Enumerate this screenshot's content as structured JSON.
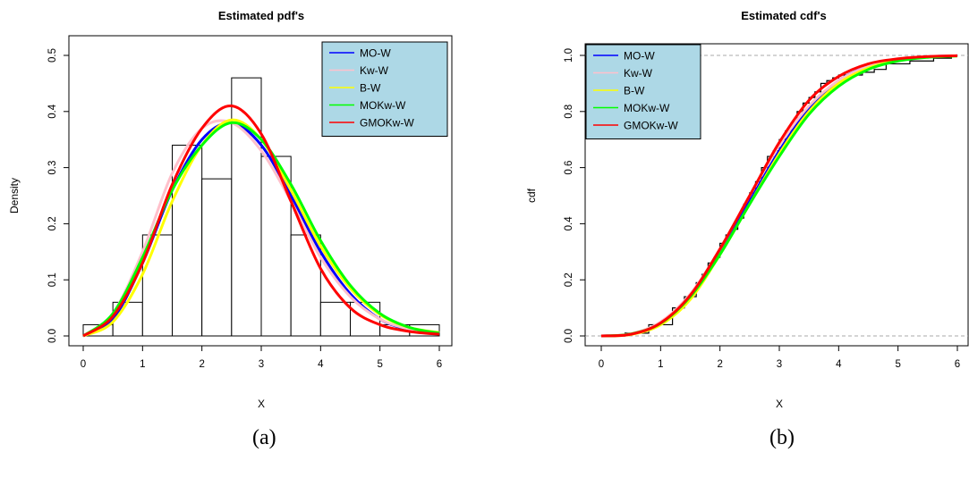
{
  "figure": {
    "panel_a_label": "(a)",
    "panel_b_label": "(b)"
  },
  "chart_data": [
    {
      "type": "bar",
      "panel": "(a)",
      "title": "Estimated pdf's",
      "xlabel": "X",
      "ylabel": "Density",
      "xlim": [
        0,
        6
      ],
      "ylim": [
        0,
        0.5
      ],
      "xticks": [
        0,
        1,
        2,
        3,
        4,
        5,
        6
      ],
      "yticks": [
        0.0,
        0.1,
        0.2,
        0.3,
        0.4,
        0.5
      ],
      "ytick_labels": [
        "0.0",
        "0.1",
        "0.2",
        "0.3",
        "0.4",
        "0.5"
      ],
      "grid": false,
      "legend_position": "top-right",
      "histogram": {
        "bin_edges": [
          0,
          0.5,
          1,
          1.5,
          2,
          2.5,
          3,
          3.5,
          4,
          4.5,
          5,
          5.5,
          6
        ],
        "density": [
          0.02,
          0.06,
          0.18,
          0.34,
          0.28,
          0.46,
          0.32,
          0.18,
          0.06,
          0.06,
          0.02,
          0.02
        ],
        "fill": "#ffffff",
        "edge": "#000000"
      },
      "series": [
        {
          "name": "MO-W",
          "color": "#0000ff",
          "x": [
            0,
            0.5,
            1,
            1.5,
            2,
            2.5,
            3,
            3.5,
            4,
            4.5,
            5,
            5.5,
            6
          ],
          "y": [
            0.0,
            0.03,
            0.13,
            0.26,
            0.35,
            0.38,
            0.34,
            0.25,
            0.15,
            0.075,
            0.03,
            0.011,
            0.004
          ]
        },
        {
          "name": "Kw-W",
          "color": "#ffc0cb",
          "x": [
            0,
            0.5,
            1,
            1.5,
            2,
            2.5,
            3,
            3.5,
            4,
            4.5,
            5,
            5.5,
            6
          ],
          "y": [
            0.0,
            0.04,
            0.15,
            0.29,
            0.37,
            0.38,
            0.33,
            0.24,
            0.14,
            0.07,
            0.03,
            0.012,
            0.005
          ]
        },
        {
          "name": "B-W",
          "color": "#ffff00",
          "x": [
            0,
            0.5,
            1,
            1.5,
            2,
            2.5,
            3,
            3.5,
            4,
            4.5,
            5,
            5.5,
            6
          ],
          "y": [
            0.0,
            0.025,
            0.11,
            0.24,
            0.34,
            0.385,
            0.35,
            0.26,
            0.16,
            0.085,
            0.038,
            0.015,
            0.006
          ]
        },
        {
          "name": "MOKw-W",
          "color": "#00ff00",
          "x": [
            0,
            0.5,
            1,
            1.5,
            2,
            2.5,
            3,
            3.5,
            4,
            4.5,
            5,
            5.5,
            6
          ],
          "y": [
            0.0,
            0.04,
            0.14,
            0.26,
            0.34,
            0.38,
            0.35,
            0.27,
            0.17,
            0.09,
            0.04,
            0.015,
            0.005
          ]
        },
        {
          "name": "GMOKw-W",
          "color": "#ff0000",
          "x": [
            0,
            0.5,
            1,
            1.5,
            2,
            2.5,
            3,
            3.5,
            4,
            4.5,
            5,
            5.5,
            6
          ],
          "y": [
            0.0,
            0.035,
            0.13,
            0.27,
            0.37,
            0.41,
            0.36,
            0.24,
            0.12,
            0.05,
            0.02,
            0.008,
            0.003
          ]
        }
      ]
    },
    {
      "type": "line",
      "panel": "(b)",
      "title": "Estimated cdf's",
      "xlabel": "X",
      "ylabel": "cdf",
      "xlim": [
        0,
        6
      ],
      "ylim": [
        0,
        1
      ],
      "xticks": [
        0,
        1,
        2,
        3,
        4,
        5,
        6
      ],
      "yticks": [
        0.0,
        0.2,
        0.4,
        0.6,
        0.8,
        1.0
      ],
      "ytick_labels": [
        "0.0",
        "0.2",
        "0.4",
        "0.6",
        "0.8",
        "1.0"
      ],
      "grid": false,
      "reference_lines_y": [
        0,
        1
      ],
      "legend_position": "top-left",
      "ecdf": {
        "color": "#000000",
        "x": [
          0.4,
          0.8,
          1.2,
          1.4,
          1.6,
          1.7,
          1.8,
          1.9,
          2.0,
          2.1,
          2.2,
          2.3,
          2.4,
          2.5,
          2.6,
          2.7,
          2.8,
          2.9,
          3.0,
          3.1,
          3.2,
          3.3,
          3.4,
          3.5,
          3.6,
          3.7,
          3.8,
          3.9,
          4.0,
          4.2,
          4.4,
          4.6,
          4.8,
          5.2,
          5.6,
          5.9
        ],
        "y": [
          0.01,
          0.04,
          0.1,
          0.14,
          0.19,
          0.22,
          0.26,
          0.28,
          0.33,
          0.36,
          0.38,
          0.42,
          0.47,
          0.51,
          0.55,
          0.6,
          0.64,
          0.66,
          0.7,
          0.73,
          0.76,
          0.8,
          0.83,
          0.85,
          0.87,
          0.9,
          0.91,
          0.92,
          0.93,
          0.93,
          0.94,
          0.95,
          0.97,
          0.98,
          0.99,
          1.0
        ]
      },
      "series": [
        {
          "name": "MO-W",
          "color": "#0000ff",
          "x": [
            0,
            0.5,
            1,
            1.5,
            2,
            2.5,
            3,
            3.5,
            4,
            4.5,
            5,
            5.5,
            6
          ],
          "y": [
            0.0,
            0.006,
            0.045,
            0.14,
            0.3,
            0.48,
            0.66,
            0.81,
            0.91,
            0.96,
            0.985,
            0.995,
            0.999
          ]
        },
        {
          "name": "Kw-W",
          "color": "#ffc0cb",
          "x": [
            0,
            0.5,
            1,
            1.5,
            2,
            2.5,
            3,
            3.5,
            4,
            4.5,
            5,
            5.5,
            6
          ],
          "y": [
            0.0,
            0.008,
            0.05,
            0.15,
            0.31,
            0.5,
            0.68,
            0.82,
            0.91,
            0.96,
            0.985,
            0.995,
            0.999
          ]
        },
        {
          "name": "B-W",
          "color": "#ffff00",
          "x": [
            0,
            0.5,
            1,
            1.5,
            2,
            2.5,
            3,
            3.5,
            4,
            4.5,
            5,
            5.5,
            6
          ],
          "y": [
            0.0,
            0.005,
            0.04,
            0.13,
            0.29,
            0.47,
            0.65,
            0.8,
            0.9,
            0.955,
            0.982,
            0.994,
            0.998
          ]
        },
        {
          "name": "MOKw-W",
          "color": "#00ff00",
          "x": [
            0,
            0.5,
            1,
            1.5,
            2,
            2.5,
            3,
            3.5,
            4,
            4.5,
            5,
            5.5,
            6
          ],
          "y": [
            0.0,
            0.007,
            0.045,
            0.14,
            0.29,
            0.47,
            0.64,
            0.79,
            0.89,
            0.95,
            0.98,
            0.993,
            0.998
          ]
        },
        {
          "name": "GMOKw-W",
          "color": "#ff0000",
          "x": [
            0,
            0.5,
            1,
            1.5,
            2,
            2.5,
            3,
            3.5,
            4,
            4.5,
            5,
            5.5,
            6
          ],
          "y": [
            0.0,
            0.006,
            0.046,
            0.145,
            0.31,
            0.5,
            0.69,
            0.84,
            0.925,
            0.97,
            0.988,
            0.996,
            0.999
          ]
        }
      ]
    }
  ]
}
